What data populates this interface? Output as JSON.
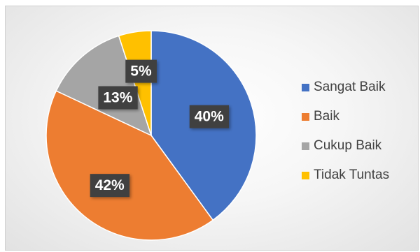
{
  "chart_data": {
    "type": "pie",
    "title": "",
    "categories": [
      "Sangat Baik",
      "Baik",
      "Cukup Baik",
      "Tidak Tuntas"
    ],
    "values": [
      40,
      42,
      13,
      5
    ],
    "labels": [
      "40%",
      "42%",
      "13%",
      "5%"
    ],
    "colors": [
      "#4472C4",
      "#ED7D31",
      "#A5A5A5",
      "#FFC000"
    ],
    "start_angle_deg": 0,
    "direction": "clockwise",
    "legend_position": "right",
    "data_label_style": "white bold text on dark box"
  }
}
